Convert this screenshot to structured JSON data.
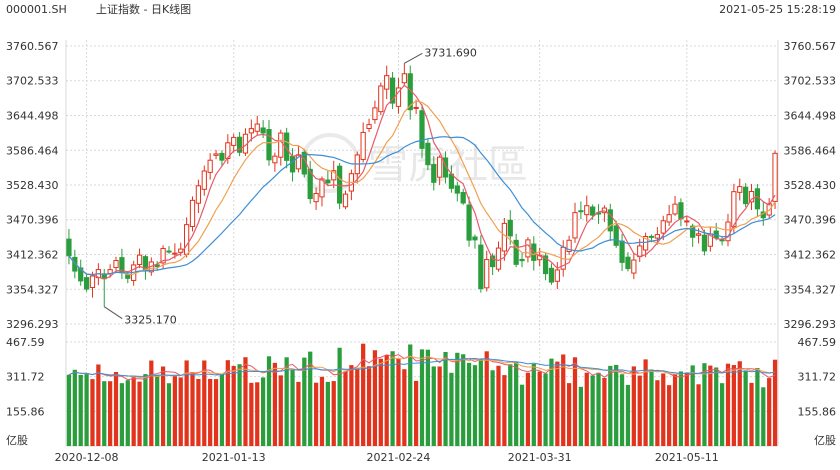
{
  "header": {
    "symbol": "000001.SH",
    "name": "上证指数 - 日K线图",
    "datetime": "2021-05-25 15:28:19"
  },
  "watermark": "雪虎社區",
  "colors": {
    "up": "#e2341d",
    "down": "#2a9d3c",
    "grid": "#d9d9d9",
    "ma_red": "#e85a6a",
    "ma_orange": "#f0a050",
    "ma_blue": "#3b8ed6"
  },
  "chart_data": {
    "type": "candlestick",
    "price_axis": {
      "ticks": [
        3760.567,
        3702.533,
        3644.498,
        3586.464,
        3528.43,
        3470.396,
        3412.362,
        3354.327,
        3296.293
      ],
      "ylim": [
        3296.293,
        3760.567
      ]
    },
    "volume_axis": {
      "ticks": [
        467.59,
        311.72,
        155.86
      ],
      "ylim": [
        0,
        467.59
      ],
      "unit": "亿股"
    },
    "x_labels": [
      {
        "i": 3,
        "label": "2020-12-08"
      },
      {
        "i": 28,
        "label": "2021-01-13"
      },
      {
        "i": 56,
        "label": "2021-02-24"
      },
      {
        "i": 80,
        "label": "2021-03-31"
      },
      {
        "i": 105,
        "label": "2021-05-11"
      }
    ],
    "annotations": [
      {
        "i": 57,
        "value": 3731.69,
        "text": "3731.690",
        "side": "high"
      },
      {
        "i": 6,
        "value": 3325.17,
        "text": "3325.170",
        "side": "low"
      }
    ],
    "closes": [
      3410.2,
      3384.7,
      3368.3,
      3354.6,
      3376.4,
      3387.2,
      3371.9,
      3387.1,
      3402.3,
      3381.8,
      3372.5,
      3394.9,
      3411.3,
      3384.9,
      3399.9,
      3392.3,
      3422.4,
      3416.8,
      3414.6,
      3421.4,
      3462.2,
      3502.8,
      3527.1,
      3551.8,
      3569.8,
      3580.3,
      3569.9,
      3598.9,
      3607.9,
      3583.1,
      3613.2,
      3622.6,
      3630.2,
      3615.4,
      3570.5,
      3576.6,
      3615.2,
      3569.6,
      3550.3,
      3578.8,
      3546.8,
      3505.8,
      3514.3,
      3538.5,
      3532.1,
      3552.3,
      3498.2,
      3513.2,
      3547.3,
      3578.6,
      3616.2,
      3629.3,
      3657.2,
      3693.8,
      3711.1,
      3665.2,
      3690.5,
      3714.2,
      3654.2,
      3657.9,
      3589.6,
      3562.4,
      3532.9,
      3574.9,
      3541.8,
      3522.9,
      3514.9,
      3498.4,
      3436.4,
      3436.8,
      3355.4,
      3403.9,
      3392.1,
      3423.1,
      3464.3,
      3443.4,
      3395.9,
      3402.1,
      3436.8,
      3402.5,
      3411.1,
      3380.4,
      3366.3,
      3386.6,
      3424.4,
      3436.1,
      3482.3,
      3484.4,
      3493.9,
      3478.1,
      3479.9,
      3489.9,
      3451.8,
      3427.7,
      3399.2,
      3388.8,
      3403.1,
      3426.7,
      3442.4,
      3441.2,
      3445.6,
      3468.7,
      3478.9,
      3496.4,
      3472.1,
      3468.4,
      3441.2,
      3446.9,
      3418.3,
      3446.7,
      3440.0,
      3436.6,
      3466.6,
      3517.3,
      3525.8,
      3497.3,
      3517.6,
      3488.6,
      3473.7,
      3497.0,
      3581.3
    ]
  }
}
